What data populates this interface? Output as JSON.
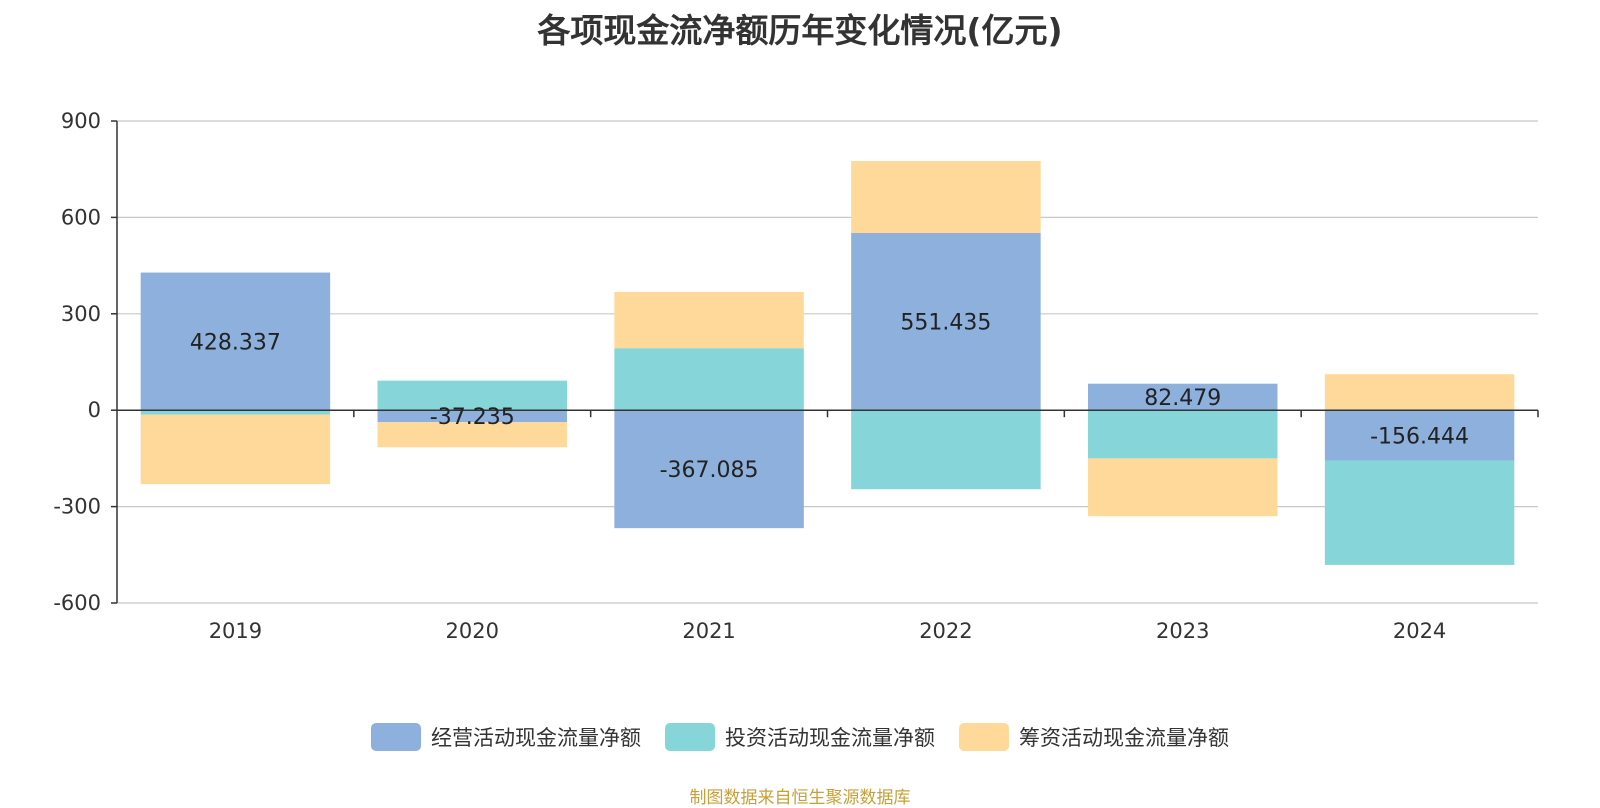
{
  "title": "各项现金流净额历年变化情况(亿元)",
  "source": "制图数据来自恒生聚源数据库",
  "colors": {
    "operating": "#8eb0dc",
    "investing": "#86d5d8",
    "financing": "#fed99a"
  },
  "chart_data": {
    "type": "bar",
    "stacked": true,
    "title": "各项现金流净额历年变化情况(亿元)",
    "xlabel": "",
    "ylabel": "",
    "categories": [
      "2019",
      "2020",
      "2021",
      "2022",
      "2023",
      "2024"
    ],
    "ylim": [
      -600,
      900
    ],
    "yticks": [
      -600,
      -300,
      0,
      300,
      600,
      900
    ],
    "grid": true,
    "legend_position": "bottom",
    "series": [
      {
        "name": "经营活动现金流量净额",
        "color_key": "operating",
        "values": [
          428.337,
          -37.235,
          -367.085,
          551.435,
          82.479,
          -156.444
        ]
      },
      {
        "name": "投资活动现金流量净额",
        "color_key": "investing",
        "values": [
          -14,
          92,
          193,
          -246,
          -150,
          -325
        ]
      },
      {
        "name": "筹资活动现金流量净额",
        "color_key": "financing",
        "values": [
          -216,
          -78,
          175,
          224,
          -180,
          112
        ]
      }
    ],
    "data_labels": [
      "428.337",
      "-37.235",
      "-367.085",
      "551.435",
      "82.479",
      "-156.444"
    ]
  }
}
